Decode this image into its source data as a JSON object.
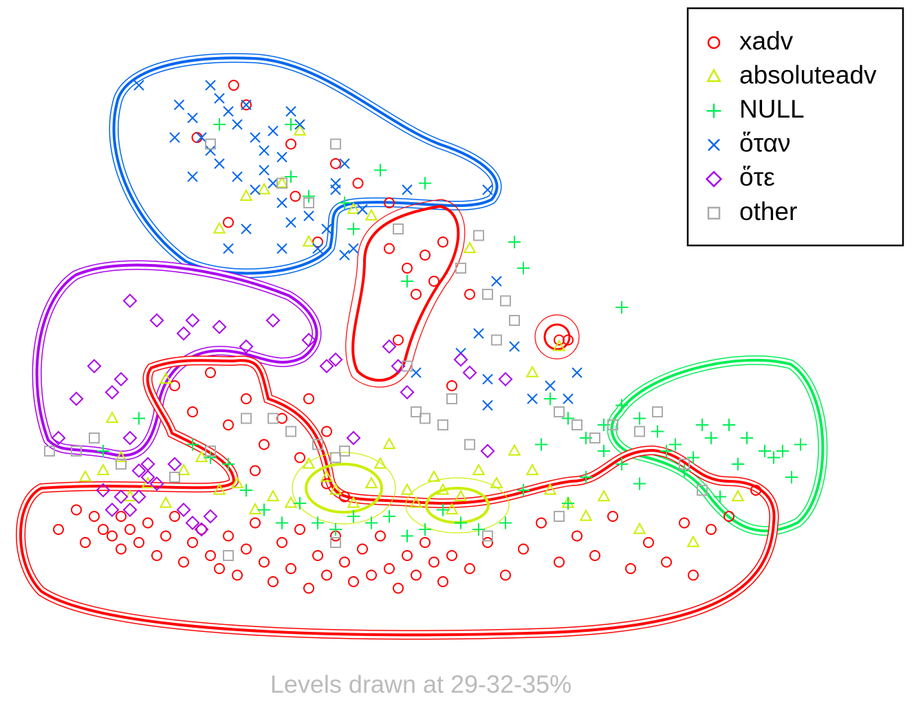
{
  "chart_data": {
    "type": "scatter",
    "caption": "Levels drawn at 29-32-35%",
    "xlim": [
      0,
      100
    ],
    "ylim": [
      0,
      100
    ],
    "legend": "top-right",
    "series": [
      {
        "name": "xadv",
        "color": "#ff0000",
        "marker": "circle",
        "x": [
          5,
          7,
          8,
          9,
          10,
          11,
          12,
          12,
          13,
          14,
          15,
          16,
          17,
          18,
          19,
          20,
          21,
          22,
          23,
          24,
          25,
          26,
          27,
          28,
          29,
          30,
          31,
          32,
          33,
          34,
          35,
          36,
          37,
          38,
          39,
          40,
          41,
          42,
          43,
          44,
          45,
          46,
          47,
          48,
          49,
          51,
          53,
          55,
          57,
          59,
          61,
          63,
          65,
          67,
          69,
          71,
          73,
          75,
          76,
          78,
          80,
          83,
          18,
          20,
          22,
          24,
          26,
          28,
          30,
          32,
          27,
          33,
          35,
          35,
          37,
          42,
          44,
          46,
          47,
          48,
          45,
          43,
          49,
          51,
          61,
          62,
          24.6,
          31,
          31.5,
          24,
          34,
          36,
          38.5,
          42,
          20.5,
          26
        ],
        "y": [
          20,
          23,
          18,
          22,
          20,
          19,
          22,
          17,
          20,
          18,
          21,
          16,
          19,
          22,
          15,
          18,
          20,
          16,
          14,
          19,
          13,
          17,
          21,
          15,
          12,
          18,
          14,
          20,
          11,
          16,
          13,
          19,
          15,
          12,
          17,
          13,
          19,
          14,
          11,
          16,
          13,
          18,
          15,
          12,
          16,
          14,
          18,
          13,
          17,
          21,
          15,
          19,
          16,
          22,
          14,
          18,
          15,
          21,
          13,
          20,
          22,
          26,
          42,
          38,
          44,
          36,
          40,
          33,
          37,
          31,
          29,
          40,
          35,
          27,
          25,
          63,
          60,
          62,
          58,
          64,
          56,
          49,
          42,
          56,
          49,
          49,
          88,
          79,
          71,
          67,
          64,
          76,
          73,
          70,
          80,
          85
        ]
      },
      {
        "name": "absoluteadv",
        "color": "#ccee00",
        "marker": "triangle",
        "x": [
          8,
          10,
          12,
          11,
          13,
          15,
          17,
          19,
          21,
          23,
          25,
          27,
          29,
          31,
          33,
          35,
          36,
          38,
          40,
          41,
          42,
          44,
          45,
          47,
          48,
          49,
          50,
          52,
          54,
          56,
          58,
          60,
          62,
          64,
          66,
          70,
          76,
          81,
          32,
          30,
          28,
          26,
          23,
          33,
          38,
          40,
          51,
          61,
          58,
          17
        ],
        "y": [
          28,
          29,
          31,
          37,
          25,
          27,
          24,
          29,
          31,
          26,
          27,
          23,
          25,
          24,
          30,
          28,
          26,
          24,
          27,
          30,
          33,
          26,
          24,
          28,
          26,
          23,
          25,
          29,
          27,
          32,
          29,
          26,
          24,
          22,
          25,
          20,
          18,
          25,
          81,
          73,
          72,
          71,
          66,
          64,
          69,
          68,
          63,
          48,
          44,
          43
        ]
      },
      {
        "name": "NULL",
        "color": "#00ee55",
        "marker": "plus",
        "x": [
          60,
          62,
          64,
          66,
          68,
          70,
          72,
          74,
          76,
          78,
          80,
          82,
          84,
          86,
          87,
          88,
          85,
          81,
          79,
          77,
          75,
          73,
          70,
          68,
          66,
          64,
          62,
          59,
          57,
          55,
          52,
          50,
          48,
          46,
          44,
          42,
          40,
          38,
          36,
          34,
          32,
          30,
          28,
          26,
          24,
          22,
          20,
          14,
          10,
          68,
          56,
          57,
          44,
          46,
          41,
          31,
          33,
          37,
          38,
          31,
          23
        ],
        "y": [
          40,
          37,
          34,
          36,
          39,
          37,
          35,
          33,
          31,
          34,
          36,
          34,
          32,
          32,
          28,
          33,
          31,
          30,
          25,
          36,
          29,
          32,
          27,
          30,
          32,
          28,
          24,
          33,
          26,
          21,
          20,
          21,
          23,
          20,
          19,
          22,
          21,
          22,
          20,
          21,
          24,
          21,
          23,
          26,
          30,
          31,
          33,
          37,
          32,
          54,
          64,
          60,
          58,
          73,
          75,
          74,
          71,
          70,
          66,
          82,
          82
        ]
      },
      {
        "name": "ὅταν",
        "color": "#0066ee",
        "marker": "cross",
        "x": [
          18.5,
          20,
          21,
          22,
          23,
          24,
          25,
          26,
          27,
          28,
          29,
          30,
          31,
          32,
          20,
          22,
          23,
          25,
          27,
          28,
          29,
          30,
          31,
          33,
          35,
          37,
          38,
          39,
          37,
          36,
          24,
          26,
          30,
          34,
          14,
          18,
          45,
          50,
          52,
          53,
          54,
          56,
          58,
          60,
          62,
          63,
          53,
          36,
          53,
          44
        ],
        "y": [
          85,
          83,
          80,
          88,
          86,
          84,
          82,
          85,
          80,
          78,
          81,
          77,
          84,
          82,
          74,
          78,
          76,
          74,
          72,
          75,
          73,
          70,
          67,
          68,
          66,
          62,
          63,
          69,
          76,
          72,
          63,
          66,
          63,
          63,
          88,
          80,
          44,
          47,
          50,
          43,
          58,
          48,
          40,
          42,
          40,
          44,
          39,
          73,
          72,
          72
        ]
      },
      {
        "name": "ὅτε",
        "color": "#aa00ee",
        "marker": "diamond",
        "x": [
          5,
          7,
          9,
          11,
          12,
          13,
          14,
          15,
          10,
          11,
          12,
          13,
          14,
          15,
          16,
          18,
          19,
          20,
          21,
          22,
          13,
          16,
          19,
          20,
          23,
          26,
          29,
          33,
          35,
          36,
          38,
          42,
          44,
          43,
          50,
          51,
          55,
          53
        ],
        "y": [
          34,
          40,
          45,
          41,
          43,
          34,
          29,
          30,
          26,
          23,
          25,
          23,
          25,
          28,
          27,
          30,
          23,
          21,
          20,
          22,
          55,
          52,
          50,
          52,
          51,
          48,
          52,
          49,
          45,
          46,
          34,
          48,
          41,
          45,
          46,
          44,
          43,
          32
        ]
      },
      {
        "name": "other",
        "color": "#aaaaaa",
        "marker": "square",
        "x": [
          4,
          7,
          9,
          12,
          18,
          22,
          26,
          29,
          31,
          34,
          36,
          37,
          44,
          45,
          46,
          48,
          49,
          51,
          52,
          50,
          53,
          55,
          56,
          54,
          61,
          63,
          65,
          67,
          70,
          72,
          75,
          77,
          53,
          61,
          36,
          24,
          22,
          30,
          36,
          33,
          43
        ],
        "y": [
          32,
          32,
          34,
          30,
          28,
          32,
          37,
          37,
          35,
          33,
          31,
          32,
          45,
          38,
          37,
          36,
          40,
          33,
          65,
          60,
          56,
          55,
          52,
          49,
          38,
          36,
          34,
          36,
          35,
          38,
          30,
          26,
          19,
          22,
          18,
          16,
          79,
          73,
          79,
          70,
          66
        ]
      }
    ]
  }
}
